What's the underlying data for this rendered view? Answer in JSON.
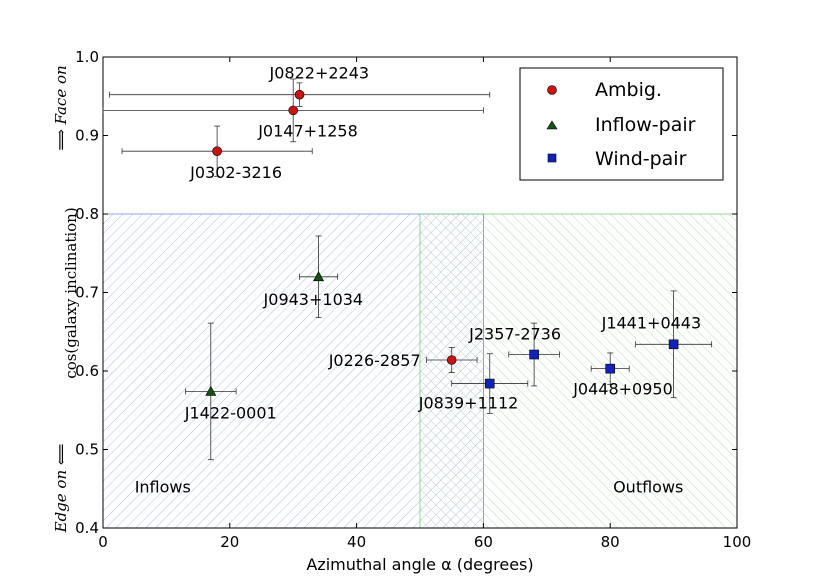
{
  "chart_data": {
    "type": "scatter",
    "xlabel": "Azimuthal angle α (degrees)",
    "ylabel": "cos(galaxy inclination)",
    "ylabel_top": "⟹ Face on",
    "ylabel_bottom": "Edge on ⟸",
    "xlim": [
      0,
      100
    ],
    "ylim": [
      0.4,
      1.0
    ],
    "xticks": [
      0,
      20,
      40,
      60,
      80,
      100
    ],
    "yticks": [
      0.4,
      0.5,
      0.6,
      0.7,
      0.8,
      0.9,
      1.0
    ],
    "xtick_labels": [
      "0",
      "20",
      "40",
      "60",
      "80",
      "100"
    ],
    "ytick_labels": [
      "0.4",
      "0.5",
      "0.6",
      "0.7",
      "0.8",
      "0.9",
      "1.0"
    ],
    "grid": false,
    "legend_position": "top-right",
    "regions": [
      {
        "label": "Inflows",
        "x": [
          0,
          60
        ],
        "y": [
          0.4,
          0.8
        ],
        "color": "#6f88e0",
        "hatch": "diagonal-up"
      },
      {
        "label": "Outflows",
        "x": [
          50,
          100
        ],
        "y": [
          0.4,
          0.8
        ],
        "color": "#7fc47f",
        "hatch": "diagonal-down"
      }
    ],
    "series": [
      {
        "name": "Ambig.",
        "marker": "circle",
        "color": "#cc1111",
        "points": [
          {
            "label": "J0822+2243",
            "x": 31,
            "y": 0.952,
            "xerr": 30,
            "yerr": 0.015
          },
          {
            "label": "J0147+1258",
            "x": 30,
            "y": 0.932,
            "xerr": 30,
            "yerr": 0.04
          },
          {
            "label": "J0302-3216",
            "x": 18,
            "y": 0.88,
            "xerr": 15,
            "yerr": 0.032
          },
          {
            "label": "J0226-2857",
            "x": 55,
            "y": 0.614,
            "xerr": 4,
            "yerr": 0.016
          }
        ]
      },
      {
        "name": "Inflow-pair",
        "marker": "triangle",
        "color": "#115511",
        "points": [
          {
            "label": "J0943+1034",
            "x": 34,
            "y": 0.72,
            "xerr": 3,
            "yerr": 0.052
          },
          {
            "label": "J1422-0001",
            "x": 17,
            "y": 0.574,
            "xerr": 4,
            "yerr": 0.087
          }
        ]
      },
      {
        "name": "Wind-pair",
        "marker": "square",
        "color": "#1122bb",
        "points": [
          {
            "label": "J1441+0443",
            "x": 90,
            "y": 0.634,
            "xerr": 6,
            "yerr": 0.068
          },
          {
            "label": "J2357-2736",
            "x": 68,
            "y": 0.621,
            "xerr": 4,
            "yerr": 0.04
          },
          {
            "label": "J0448+0950",
            "x": 80,
            "y": 0.603,
            "xerr": 3,
            "yerr": 0.02
          },
          {
            "label": "J0839+1112",
            "x": 61,
            "y": 0.584,
            "xerr": 6,
            "yerr": 0.038
          }
        ]
      }
    ]
  }
}
